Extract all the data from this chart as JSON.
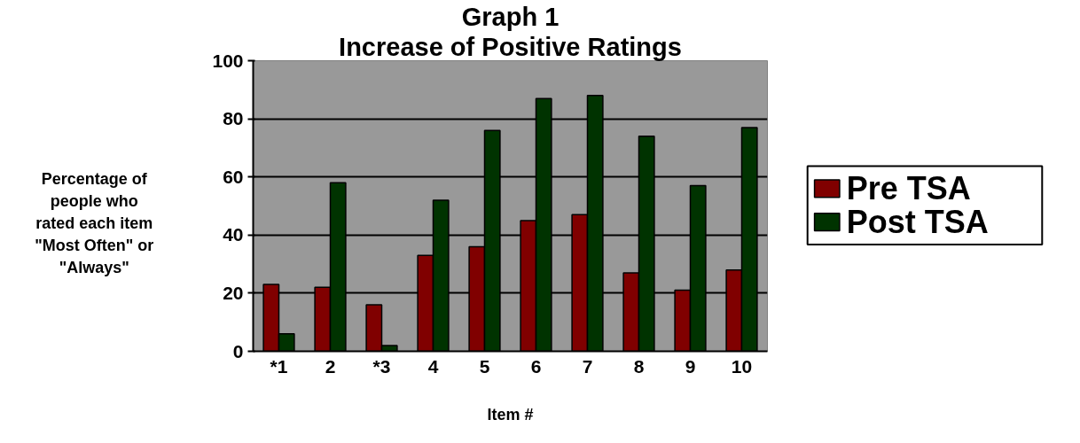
{
  "chart_data": {
    "type": "bar",
    "title": "Graph 1",
    "subtitle": "Increase of Positive Ratings",
    "xlabel": "Item #",
    "ylabel": "Percentage of\npeople who\nrated each item\n\"Most Often\" or\n\"Always\"",
    "categories": [
      "*1",
      "2",
      "*3",
      "4",
      "5",
      "6",
      "7",
      "8",
      "9",
      "10"
    ],
    "series": [
      {
        "name": "Pre TSA",
        "color": "#800000",
        "values": [
          23,
          22,
          16,
          33,
          36,
          45,
          47,
          27,
          21,
          28
        ]
      },
      {
        "name": "Post TSA",
        "color": "#003300",
        "values": [
          6,
          58,
          2,
          52,
          76,
          87,
          88,
          74,
          57,
          77
        ]
      }
    ],
    "ylim": [
      0,
      100
    ],
    "yticks": [
      0,
      20,
      40,
      60,
      80,
      100
    ],
    "grid": "y",
    "legend": "right"
  }
}
